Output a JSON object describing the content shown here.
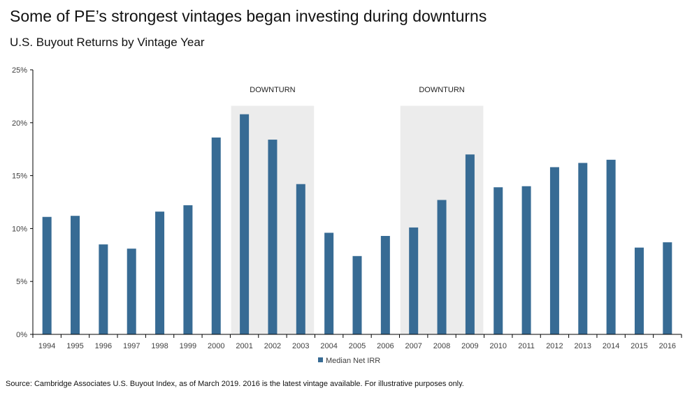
{
  "title": "Some of PE’s strongest vintages began investing during downturns",
  "subtitle": "U.S. Buyout Returns by Vintage Year",
  "source": "Source: Cambridge Associates U.S. Buyout Index, as of March 2019. 2016 is the latest vintage available. For illustrative purposes only.",
  "colors": {
    "bar": "#376b94",
    "band": "#ececec",
    "axis": "#000000"
  },
  "chart_data": {
    "type": "bar",
    "title": "U.S. Buyout Returns by Vintage Year",
    "xlabel": "",
    "ylabel": "",
    "categories": [
      "1994",
      "1995",
      "1996",
      "1997",
      "1998",
      "1999",
      "2000",
      "2001",
      "2002",
      "2003",
      "2004",
      "2005",
      "2006",
      "2007",
      "2008",
      "2009",
      "2010",
      "2011",
      "2012",
      "2013",
      "2014",
      "2015",
      "2016"
    ],
    "series": [
      {
        "name": "Median Net IRR",
        "values": [
          11.1,
          11.2,
          8.5,
          8.1,
          11.6,
          12.2,
          18.6,
          20.8,
          18.4,
          14.2,
          9.6,
          7.4,
          9.3,
          10.1,
          12.7,
          17.0,
          13.9,
          14.0,
          15.8,
          16.2,
          16.5,
          8.2,
          8.7
        ]
      }
    ],
    "ylim": [
      0,
      25
    ],
    "yticks": [
      "0%",
      "5%",
      "10%",
      "15%",
      "20%",
      "25%"
    ],
    "ytick_values": [
      0,
      5,
      10,
      15,
      20,
      25
    ],
    "grid": false,
    "legend": "bottom",
    "annotations": [
      {
        "label": "DOWNTURN",
        "from": "2001",
        "to": "2003"
      },
      {
        "label": "DOWNTURN",
        "from": "2007",
        "to": "2009"
      }
    ]
  }
}
